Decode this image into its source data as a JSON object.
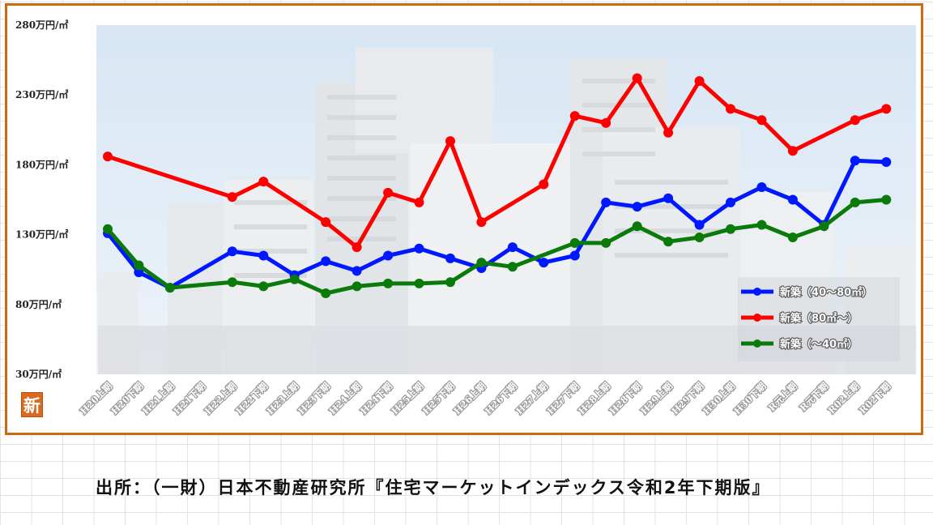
{
  "chart_data": {
    "type": "line",
    "y_tick_labels": [
      "280万円/㎡",
      "230万円/㎡",
      "180万円/㎡",
      "130万円/㎡",
      "80万円/㎡",
      "30万円/㎡"
    ],
    "y_tick_values": [
      280,
      230,
      180,
      130,
      80,
      30
    ],
    "ylim": [
      30,
      280
    ],
    "categories": [
      "H20上期",
      "H20下期",
      "H21上期",
      "H21下期",
      "H22上期",
      "H22下期",
      "H23上期",
      "H23下期",
      "H24上期",
      "H24下期",
      "H25上期",
      "H25下期",
      "H26上期",
      "H26下期",
      "H27上期",
      "H27下期",
      "H28上期",
      "H28下期",
      "H29上期",
      "H29下期",
      "H30上期",
      "H30下期",
      "R元上期",
      "R元下期",
      "R02上期",
      "R02下期"
    ],
    "series": [
      {
        "name": "新築（40～80㎡）",
        "color": "#0018ff",
        "values": [
          131,
          103,
          92,
          null,
          118,
          115,
          101,
          111,
          104,
          115,
          120,
          113,
          106,
          121,
          110,
          115,
          153,
          150,
          156,
          137,
          153,
          164,
          155,
          137,
          183,
          182
        ]
      },
      {
        "name": "新築（80㎡～）",
        "color": "#ff0000",
        "values": [
          186,
          null,
          null,
          null,
          157,
          168,
          null,
          139,
          121,
          160,
          153,
          197,
          139,
          null,
          166,
          215,
          210,
          242,
          203,
          240,
          220,
          212,
          190,
          null,
          212,
          220
        ]
      },
      {
        "name": "新築（～40㎡）",
        "color": "#0a7a0a",
        "values": [
          134,
          108,
          92,
          null,
          96,
          93,
          98,
          88,
          93,
          95,
          95,
          96,
          110,
          107,
          null,
          124,
          124,
          136,
          125,
          128,
          134,
          137,
          128,
          136,
          153,
          155
        ]
      }
    ],
    "legend_position": "lower-right",
    "grid": false
  },
  "logo": {
    "glyph": "新"
  },
  "source": {
    "text": "出所：（一財）日本不動産研究所『住宅マーケットインデックス令和2年下期版』"
  }
}
